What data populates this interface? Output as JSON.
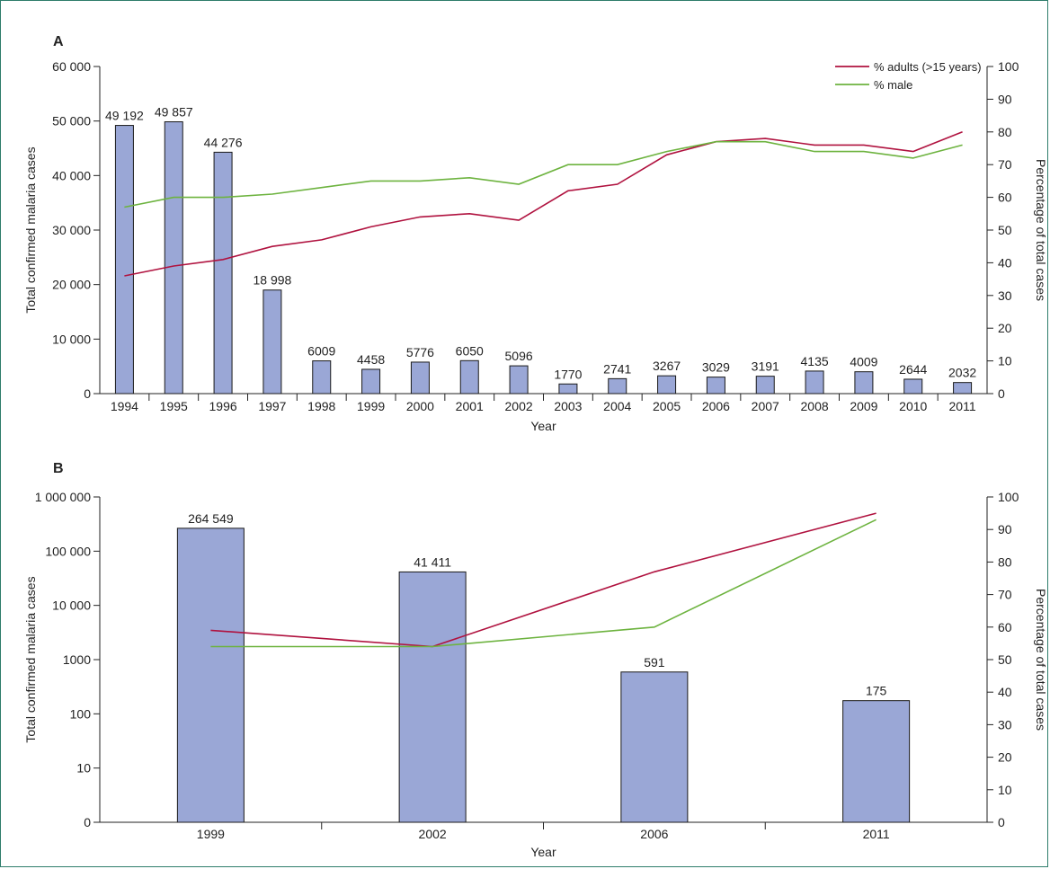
{
  "chart_data": [
    {
      "panel": "A",
      "type": "bar",
      "categories": [
        "1994",
        "1995",
        "1996",
        "1997",
        "1998",
        "1999",
        "2000",
        "2001",
        "2002",
        "2003",
        "2004",
        "2005",
        "2006",
        "2007",
        "2008",
        "2009",
        "2010",
        "2011"
      ],
      "values": [
        49192,
        49857,
        44276,
        18998,
        6009,
        4458,
        5776,
        6050,
        5096,
        1770,
        2741,
        3267,
        3029,
        3191,
        4135,
        4009,
        2644,
        2032
      ],
      "value_labels": [
        "49 192",
        "49 857",
        "44 276",
        "18 998",
        "6009",
        "4458",
        "5776",
        "6050",
        "5096",
        "1770",
        "2741",
        "3267",
        "3029",
        "3191",
        "4135",
        "4009",
        "2644",
        "2032"
      ],
      "ylim": [
        0,
        60000
      ],
      "yticks": [
        0,
        10000,
        20000,
        30000,
        40000,
        50000,
        60000
      ],
      "ytick_labels": [
        "0",
        "10 000",
        "20 000",
        "30 000",
        "40 000",
        "50 000",
        "60 000"
      ],
      "y2lim": [
        0,
        100
      ],
      "y2ticks": [
        0,
        10,
        20,
        30,
        40,
        50,
        60,
        70,
        80,
        90,
        100
      ],
      "y2tick_labels": [
        "0",
        "10",
        "20",
        "30",
        "40",
        "50",
        "60",
        "70",
        "80",
        "90",
        "100"
      ],
      "xlabel": "Year",
      "ylabel": "Total confirmed malaria cases",
      "y2label": "Percentage of total cases",
      "series": [
        {
          "name": "% adults (>15 years)",
          "color": "#b0123f",
          "axis": "right",
          "values": [
            36,
            39,
            41,
            45,
            47,
            51,
            54,
            55,
            53,
            62,
            64,
            73,
            77,
            78,
            76,
            76,
            74,
            80
          ]
        },
        {
          "name": "% male",
          "color": "#6db33f",
          "axis": "right",
          "values": [
            57,
            60,
            60,
            61,
            63,
            65,
            65,
            66,
            64,
            70,
            70,
            74,
            77,
            77,
            74,
            74,
            72,
            76
          ]
        }
      ],
      "legend": "top-right",
      "bar_color": "#9aa7d6"
    },
    {
      "panel": "B",
      "type": "bar",
      "scale": "log",
      "categories": [
        "1999",
        "2002",
        "2006",
        "2011"
      ],
      "values": [
        264549,
        41411,
        591,
        175
      ],
      "value_labels": [
        "264 549",
        "41 411",
        "591",
        "175"
      ],
      "ylim": [
        1,
        1000000
      ],
      "yticks": [
        1,
        10,
        100,
        1000,
        10000,
        100000,
        1000000
      ],
      "ytick_labels": [
        "0",
        "10",
        "100",
        "1000",
        "10 000",
        "100 000",
        "1 000 000"
      ],
      "y2lim": [
        0,
        100
      ],
      "y2ticks": [
        0,
        10,
        20,
        30,
        40,
        50,
        60,
        70,
        80,
        90,
        100
      ],
      "y2tick_labels": [
        "0",
        "10",
        "20",
        "30",
        "40",
        "50",
        "60",
        "70",
        "80",
        "90",
        "100"
      ],
      "xlabel": "Year",
      "ylabel": "Total confirmed malaria cases",
      "y2label": "Percentage of total cases",
      "series": [
        {
          "name": "% adults (>15 years)",
          "color": "#b0123f",
          "axis": "right",
          "values": [
            59,
            54,
            77,
            95
          ]
        },
        {
          "name": "% male",
          "color": "#6db33f",
          "axis": "right",
          "values": [
            54,
            54,
            60,
            93
          ]
        }
      ],
      "bar_color": "#9aa7d6"
    }
  ]
}
